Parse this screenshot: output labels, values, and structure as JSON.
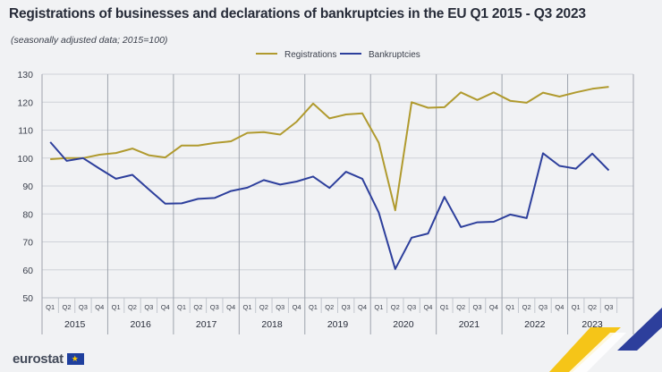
{
  "header": {
    "title": "Registrations of businesses and declarations of bankruptcies in the EU Q1 2015 - Q3 2023",
    "subtitle": "(seasonally adjusted data; 2015=100)"
  },
  "footer": {
    "brand": "eurostat"
  },
  "colors": {
    "registrations": "#b09a2e",
    "bankruptcies": "#2d3f9c",
    "grid": "#cfd2d8",
    "axis_text": "#3a3f4b"
  },
  "chart_data": {
    "type": "line",
    "title": "Registrations of businesses and declarations of bankruptcies in the EU Q1 2015 - Q3 2023",
    "subtitle": "(seasonally adjusted data; 2015=100)",
    "xlabel": "",
    "ylabel": "",
    "ylim": [
      50,
      130
    ],
    "yticks": [
      50,
      60,
      70,
      80,
      90,
      100,
      110,
      120,
      130
    ],
    "legend_position": "top-center",
    "quarters": [
      "Q1",
      "Q2",
      "Q3",
      "Q4",
      "Q1",
      "Q2",
      "Q3",
      "Q4",
      "Q1",
      "Q2",
      "Q3",
      "Q4",
      "Q1",
      "Q2",
      "Q3",
      "Q4",
      "Q1",
      "Q2",
      "Q3",
      "Q4",
      "Q1",
      "Q2",
      "Q3",
      "Q4",
      "Q1",
      "Q2",
      "Q3",
      "Q4",
      "Q1",
      "Q2",
      "Q3",
      "Q4",
      "Q1",
      "Q2",
      "Q3"
    ],
    "years": [
      "2015",
      "2016",
      "2017",
      "2018",
      "2019",
      "2020",
      "2021",
      "2022",
      "2023"
    ],
    "series": [
      {
        "name": "Registrations",
        "values": [
          99.6,
          100.0,
          100.0,
          101.2,
          101.8,
          103.4,
          101.0,
          100.2,
          104.5,
          104.5,
          105.4,
          106.0,
          109.0,
          109.3,
          108.4,
          113.0,
          119.5,
          114.2,
          115.6,
          116.0,
          105.5,
          81.3,
          120.0,
          118.0,
          118.2,
          123.5,
          120.8,
          123.5,
          120.5,
          119.8,
          123.4,
          122.0,
          123.5,
          124.8,
          125.5
        ]
      },
      {
        "name": "Bankruptcies",
        "values": [
          105.7,
          99.0,
          100.0,
          96.2,
          92.6,
          94.0,
          88.8,
          83.7,
          83.8,
          85.4,
          85.7,
          88.2,
          89.4,
          92.1,
          90.5,
          91.6,
          93.4,
          89.3,
          95.1,
          92.6,
          80.5,
          60.3,
          71.5,
          73.0,
          86.1,
          75.3,
          77.0,
          77.2,
          79.8,
          78.5,
          101.7,
          97.2,
          96.2,
          101.6,
          95.6
        ]
      }
    ]
  }
}
